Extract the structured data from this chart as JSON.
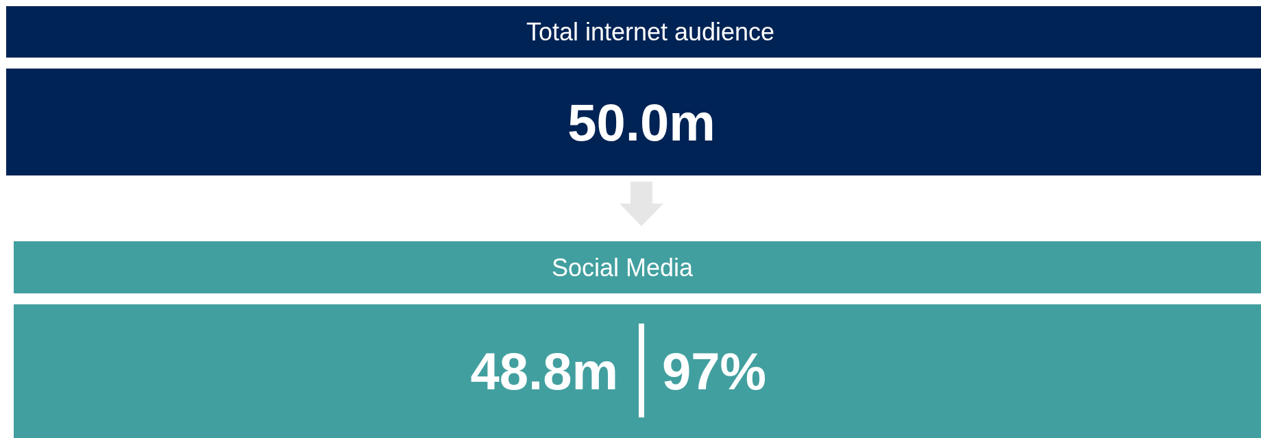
{
  "chart_data": {
    "type": "other",
    "categories": [
      "Total internet audience",
      "Social Media"
    ],
    "values": [
      50.0,
      48.8
    ],
    "value_labels": [
      "50.0m",
      "48.8m"
    ],
    "colors": [
      "#002355",
      "#429f9f"
    ],
    "annotations": [
      "97%"
    ]
  }
}
